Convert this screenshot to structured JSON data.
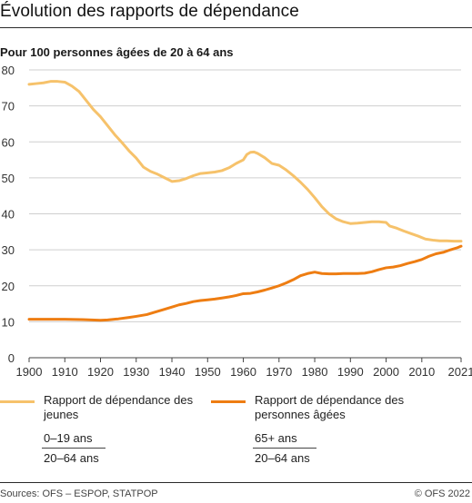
{
  "title": "Évolution des rapports de dépendance",
  "subtitle": "Pour 100 personnes âgées de 20 à 64 ans",
  "colors": {
    "young": "#f6c26b",
    "old": "#ee7d12",
    "grid": "#cfcfcf",
    "axis": "#444444"
  },
  "legend": {
    "young": {
      "label": "Rapport de dépendance des jeunes",
      "numerator": "0–19 ans",
      "denominator": "20–64 ans"
    },
    "old": {
      "label": "Rapport de dépendance des personnes âgées",
      "numerator": "65+ ans",
      "denominator": "20–64 ans"
    }
  },
  "footer": {
    "source": "Sources: OFS – ESPOP, STATPOP",
    "copyright": "© OFS 2022"
  },
  "chart_data": {
    "type": "line",
    "title": "Évolution des rapports de dépendance",
    "subtitle": "Pour 100 personnes âgées de 20 à 64 ans",
    "xlim": [
      1900,
      2021
    ],
    "ylim": [
      0,
      80
    ],
    "x_ticks": [
      1900,
      1910,
      1920,
      1930,
      1940,
      1950,
      1960,
      1970,
      1980,
      1990,
      2000,
      2010,
      2021
    ],
    "y_ticks": [
      0,
      10,
      20,
      30,
      40,
      50,
      60,
      70,
      80
    ],
    "grid": true,
    "legend_position": "bottom",
    "series": [
      {
        "name": "Rapport de dépendance des jeunes",
        "points": [
          [
            1900,
            76.0
          ],
          [
            1902,
            76.2
          ],
          [
            1904,
            76.4
          ],
          [
            1906,
            76.8
          ],
          [
            1908,
            76.8
          ],
          [
            1910,
            76.6
          ],
          [
            1912,
            75.5
          ],
          [
            1914,
            74.0
          ],
          [
            1916,
            71.5
          ],
          [
            1918,
            69.0
          ],
          [
            1920,
            67.0
          ],
          [
            1922,
            64.5
          ],
          [
            1924,
            62.0
          ],
          [
            1926,
            59.8
          ],
          [
            1928,
            57.5
          ],
          [
            1930,
            55.5
          ],
          [
            1932,
            53.0
          ],
          [
            1934,
            51.8
          ],
          [
            1936,
            51.0
          ],
          [
            1938,
            50.0
          ],
          [
            1940,
            49.0
          ],
          [
            1942,
            49.2
          ],
          [
            1944,
            49.8
          ],
          [
            1946,
            50.6
          ],
          [
            1948,
            51.2
          ],
          [
            1950,
            51.4
          ],
          [
            1952,
            51.6
          ],
          [
            1954,
            52.0
          ],
          [
            1956,
            52.8
          ],
          [
            1958,
            54.0
          ],
          [
            1960,
            55.0
          ],
          [
            1961,
            56.5
          ],
          [
            1962,
            57.1
          ],
          [
            1963,
            57.2
          ],
          [
            1964,
            56.8
          ],
          [
            1966,
            55.6
          ],
          [
            1968,
            54.0
          ],
          [
            1970,
            53.5
          ],
          [
            1972,
            52.2
          ],
          [
            1974,
            50.6
          ],
          [
            1976,
            48.8
          ],
          [
            1978,
            46.8
          ],
          [
            1980,
            44.5
          ],
          [
            1982,
            42.0
          ],
          [
            1984,
            40.0
          ],
          [
            1986,
            38.6
          ],
          [
            1988,
            37.8
          ],
          [
            1990,
            37.3
          ],
          [
            1992,
            37.4
          ],
          [
            1994,
            37.6
          ],
          [
            1996,
            37.8
          ],
          [
            1998,
            37.8
          ],
          [
            2000,
            37.6
          ],
          [
            2001,
            36.6
          ],
          [
            2003,
            36.0
          ],
          [
            2005,
            35.2
          ],
          [
            2007,
            34.5
          ],
          [
            2009,
            33.8
          ],
          [
            2011,
            33.0
          ],
          [
            2013,
            32.7
          ],
          [
            2015,
            32.5
          ],
          [
            2017,
            32.5
          ],
          [
            2019,
            32.4
          ],
          [
            2021,
            32.4
          ]
        ]
      },
      {
        "name": "Rapport de dépendance des personnes âgées",
        "points": [
          [
            1900,
            10.7
          ],
          [
            1905,
            10.7
          ],
          [
            1910,
            10.7
          ],
          [
            1915,
            10.6
          ],
          [
            1920,
            10.4
          ],
          [
            1922,
            10.5
          ],
          [
            1925,
            10.8
          ],
          [
            1928,
            11.2
          ],
          [
            1930,
            11.5
          ],
          [
            1933,
            12.0
          ],
          [
            1935,
            12.6
          ],
          [
            1938,
            13.5
          ],
          [
            1940,
            14.1
          ],
          [
            1942,
            14.7
          ],
          [
            1944,
            15.1
          ],
          [
            1946,
            15.6
          ],
          [
            1948,
            15.9
          ],
          [
            1950,
            16.1
          ],
          [
            1952,
            16.3
          ],
          [
            1954,
            16.6
          ],
          [
            1956,
            16.9
          ],
          [
            1958,
            17.3
          ],
          [
            1960,
            17.8
          ],
          [
            1962,
            17.9
          ],
          [
            1964,
            18.3
          ],
          [
            1966,
            18.8
          ],
          [
            1968,
            19.4
          ],
          [
            1970,
            20.0
          ],
          [
            1972,
            20.8
          ],
          [
            1974,
            21.7
          ],
          [
            1976,
            22.8
          ],
          [
            1978,
            23.4
          ],
          [
            1980,
            23.8
          ],
          [
            1982,
            23.4
          ],
          [
            1984,
            23.3
          ],
          [
            1986,
            23.3
          ],
          [
            1988,
            23.4
          ],
          [
            1990,
            23.4
          ],
          [
            1992,
            23.4
          ],
          [
            1994,
            23.5
          ],
          [
            1996,
            23.9
          ],
          [
            1998,
            24.5
          ],
          [
            2000,
            25.0
          ],
          [
            2002,
            25.2
          ],
          [
            2004,
            25.6
          ],
          [
            2006,
            26.2
          ],
          [
            2008,
            26.7
          ],
          [
            2010,
            27.3
          ],
          [
            2012,
            28.2
          ],
          [
            2014,
            28.9
          ],
          [
            2016,
            29.3
          ],
          [
            2018,
            30.0
          ],
          [
            2020,
            30.6
          ],
          [
            2021,
            31.0
          ]
        ]
      }
    ]
  }
}
